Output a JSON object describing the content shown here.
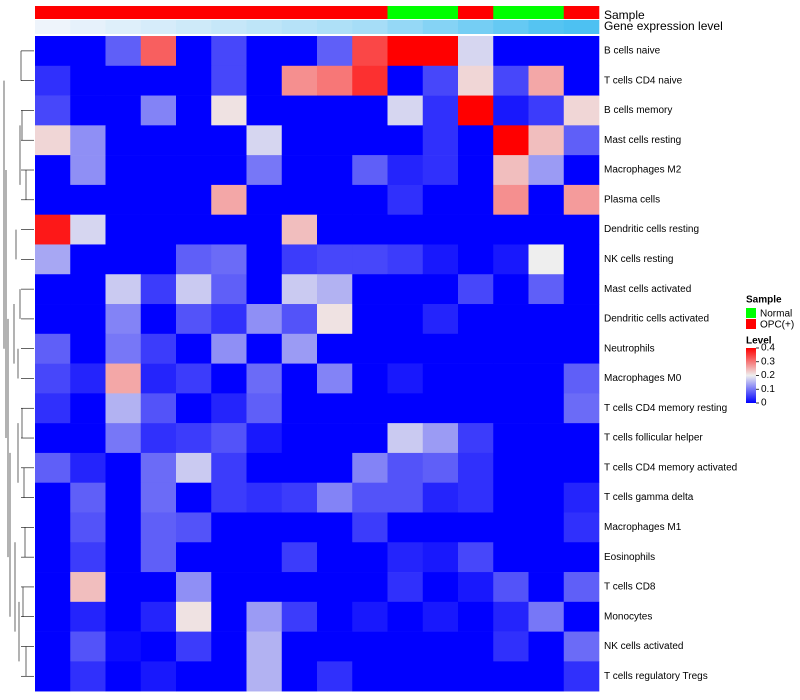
{
  "chart_data": {
    "type": "heatmap",
    "annotation_labels": [
      "Sample",
      "Gene expression level"
    ],
    "sample_annotation": [
      "OPC(+)",
      "OPC(+)",
      "OPC(+)",
      "OPC(+)",
      "OPC(+)",
      "OPC(+)",
      "OPC(+)",
      "OPC(+)",
      "OPC(+)",
      "OPC(+)",
      "Normal",
      "Normal",
      "OPC(+)",
      "Normal",
      "Normal",
      "OPC(+)"
    ],
    "expression_annotation": [
      0.0,
      0.05,
      0.1,
      0.15,
      0.2,
      0.25,
      0.3,
      0.35,
      0.4,
      0.45,
      0.55,
      0.65,
      0.75,
      0.85,
      0.95,
      1.0
    ],
    "rows": [
      "B cells naive",
      "T cells CD4 naive",
      "B cells memory",
      "Mast cells resting",
      "Macrophages M2",
      "Plasma cells",
      "Dendritic cells resting",
      "NK cells resting",
      "Mast cells activated",
      "Dendritic cells activated",
      "Neutrophils",
      "Macrophages M0",
      "T cells CD4 memory resting",
      "T cells follicular helper",
      "T cells CD4 memory activated",
      "T cells gamma delta",
      "Macrophages M1",
      "Eosinophils",
      "T cells CD8",
      "Monocytes",
      "NK cells activated",
      "T cells regulatory  Tregs"
    ],
    "values": [
      [
        0.0,
        0.0,
        0.08,
        0.32,
        0.0,
        0.06,
        0.0,
        0.0,
        0.08,
        0.34,
        0.4,
        0.4,
        0.18,
        0.0,
        0.0,
        0.0
      ],
      [
        0.04,
        0.0,
        0.0,
        0.0,
        0.0,
        0.06,
        0.0,
        0.28,
        0.3,
        0.36,
        0.0,
        0.06,
        0.22,
        0.06,
        0.26,
        0.0
      ],
      [
        0.06,
        0.0,
        0.0,
        0.11,
        0.0,
        0.21,
        0.0,
        0.0,
        0.0,
        0.0,
        0.18,
        0.04,
        0.4,
        0.02,
        0.05,
        0.22
      ],
      [
        0.22,
        0.12,
        0.0,
        0.0,
        0.0,
        0.0,
        0.18,
        0.0,
        0.0,
        0.0,
        0.0,
        0.04,
        0.0,
        0.4,
        0.24,
        0.08
      ],
      [
        0.0,
        0.12,
        0.0,
        0.0,
        0.0,
        0.0,
        0.1,
        0.0,
        0.0,
        0.08,
        0.03,
        0.04,
        0.0,
        0.24,
        0.13,
        0.0
      ],
      [
        0.0,
        0.0,
        0.0,
        0.0,
        0.0,
        0.26,
        0.0,
        0.0,
        0.0,
        0.0,
        0.04,
        0.0,
        0.0,
        0.28,
        0.0,
        0.27
      ],
      [
        0.38,
        0.18,
        0.0,
        0.0,
        0.0,
        0.0,
        0.0,
        0.24,
        0.0,
        0.0,
        0.0,
        0.0,
        0.0,
        0.0,
        0.0,
        0.0
      ],
      [
        0.14,
        0.0,
        0.0,
        0.0,
        0.08,
        0.09,
        0.0,
        0.05,
        0.06,
        0.06,
        0.05,
        0.02,
        0.0,
        0.02,
        0.2,
        0.0
      ],
      [
        0.0,
        0.0,
        0.17,
        0.05,
        0.17,
        0.08,
        0.0,
        0.17,
        0.15,
        0.0,
        0.0,
        0.0,
        0.06,
        0.0,
        0.08,
        0.0
      ],
      [
        0.0,
        0.0,
        0.11,
        0.0,
        0.07,
        0.04,
        0.12,
        0.07,
        0.21,
        0.0,
        0.0,
        0.03,
        0.0,
        0.0,
        0.0,
        0.0
      ],
      [
        0.08,
        0.0,
        0.1,
        0.05,
        0.0,
        0.12,
        0.0,
        0.13,
        0.0,
        0.0,
        0.0,
        0.0,
        0.0,
        0.0,
        0.0,
        0.0
      ],
      [
        0.06,
        0.03,
        0.26,
        0.03,
        0.05,
        0.0,
        0.09,
        0.0,
        0.11,
        0.0,
        0.02,
        0.0,
        0.0,
        0.0,
        0.0,
        0.08
      ],
      [
        0.04,
        0.0,
        0.15,
        0.07,
        0.0,
        0.03,
        0.08,
        0.0,
        0.0,
        0.0,
        0.0,
        0.0,
        0.0,
        0.0,
        0.0,
        0.09
      ],
      [
        0.0,
        0.0,
        0.1,
        0.04,
        0.05,
        0.07,
        0.02,
        0.0,
        0.0,
        0.0,
        0.17,
        0.13,
        0.05,
        0.0,
        0.0,
        0.0
      ],
      [
        0.08,
        0.03,
        0.0,
        0.09,
        0.17,
        0.05,
        0.0,
        0.0,
        0.0,
        0.11,
        0.07,
        0.08,
        0.04,
        0.0,
        0.0,
        0.0
      ],
      [
        0.0,
        0.08,
        0.0,
        0.09,
        0.0,
        0.05,
        0.04,
        0.05,
        0.11,
        0.07,
        0.07,
        0.03,
        0.04,
        0.0,
        0.0,
        0.03
      ],
      [
        0.0,
        0.07,
        0.0,
        0.08,
        0.07,
        0.0,
        0.0,
        0.0,
        0.0,
        0.05,
        0.0,
        0.0,
        0.0,
        0.0,
        0.0,
        0.04
      ],
      [
        0.0,
        0.05,
        0.0,
        0.08,
        0.0,
        0.0,
        0.0,
        0.05,
        0.0,
        0.0,
        0.03,
        0.02,
        0.06,
        0.0,
        0.0,
        0.0
      ],
      [
        0.0,
        0.24,
        0.0,
        0.0,
        0.12,
        0.0,
        0.0,
        0.0,
        0.0,
        0.0,
        0.04,
        0.0,
        0.02,
        0.07,
        0.0,
        0.08
      ],
      [
        0.0,
        0.03,
        0.0,
        0.03,
        0.21,
        0.0,
        0.13,
        0.05,
        0.0,
        0.02,
        0.0,
        0.02,
        0.0,
        0.03,
        0.1,
        0.0
      ],
      [
        0.0,
        0.07,
        0.01,
        0.0,
        0.05,
        0.0,
        0.15,
        0.0,
        0.0,
        0.0,
        0.0,
        0.0,
        0.0,
        0.04,
        0.0,
        0.09
      ],
      [
        0.0,
        0.04,
        0.0,
        0.02,
        0.0,
        0.0,
        0.15,
        0.0,
        0.04,
        0.0,
        0.0,
        0.0,
        0.0,
        0.0,
        0.0,
        0.04
      ]
    ],
    "color_scale": {
      "min": 0.0,
      "max": 0.4,
      "colors": [
        "#0000ff",
        "#eeeeee",
        "#ff0000"
      ]
    },
    "legend": {
      "sample_title": "Sample",
      "sample_entries": [
        {
          "label": "Normal",
          "color": "#00ff00"
        },
        {
          "label": "OPC(+)",
          "color": "#ff0000"
        }
      ],
      "level_title": "Level",
      "level_ticks": [
        "0.4",
        "0.3",
        "0.2",
        "0.1",
        "0"
      ],
      "level_tick_values": [
        0.4,
        0.3,
        0.2,
        0.1,
        0.0
      ]
    },
    "row_dendrogram": "left",
    "annotation_colors": {
      "expression_low": "#eef4fb",
      "expression_high": "#4dc1f2"
    }
  }
}
